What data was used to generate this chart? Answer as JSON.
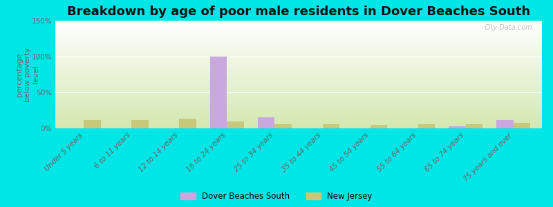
{
  "title": "Breakdown by age of poor male residents in Dover Beaches South",
  "ylabel": "percentage\nbelow poverty\nlevel",
  "categories": [
    "Under 5 years",
    "6 to 11 years",
    "12 to 14 years",
    "18 to 24 years",
    "25 to 34 years",
    "35 to 44 years",
    "45 to 54 years",
    "55 to 64 years",
    "65 to 74 years",
    "75 years and over"
  ],
  "dover_values": [
    0,
    0,
    0,
    100,
    15,
    0,
    0,
    0,
    3,
    12
  ],
  "nj_values": [
    12,
    12,
    13,
    10,
    6,
    6,
    5,
    6,
    6,
    8
  ],
  "dover_color": "#c9a8e0",
  "nj_color": "#c8c87a",
  "background_color": "#00e5e5",
  "plot_bg_top": "#ffffff",
  "plot_bg_bottom": "#d4e8b0",
  "ylim": [
    0,
    150
  ],
  "yticks": [
    0,
    50,
    100,
    150
  ],
  "ytick_labels": [
    "0%",
    "50%",
    "100%",
    "150%"
  ],
  "bar_width": 0.35,
  "title_fontsize": 13,
  "label_fontsize": 8,
  "tick_fontsize": 7.5,
  "legend_dover": "Dover Beaches South",
  "legend_nj": "New Jersey",
  "watermark": "City-Data.com"
}
